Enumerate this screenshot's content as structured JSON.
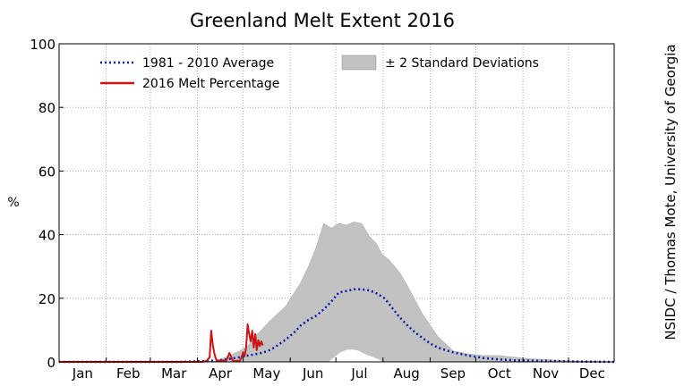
{
  "chart_data": {
    "type": "line",
    "title": "Greenland Melt Extent 2016",
    "ylabel": "%",
    "xlabel": "",
    "credit": "NSIDC / Thomas Mote, University of Georgia",
    "months": [
      "Jan",
      "Feb",
      "Mar",
      "Apr",
      "May",
      "Jun",
      "Jul",
      "Aug",
      "Sep",
      "Oct",
      "Nov",
      "Dec"
    ],
    "ylim": [
      0,
      100
    ],
    "yticks": [
      0,
      20,
      40,
      60,
      80,
      100
    ],
    "xlim_day": [
      1,
      366
    ],
    "grid": true,
    "legend": {
      "placement": "top",
      "average_label": "1981 - 2010 Average",
      "melt_label": "2016 Melt Percentage",
      "band_label": "± 2 Standard Deviations"
    },
    "colors": {
      "average": "#0b1fa8",
      "melt": "#cc1414",
      "band": "#c2c2c2",
      "grid": "#999999"
    },
    "series": [
      {
        "name": "1981 - 2010 Average",
        "style": "dotted",
        "x": [
          1,
          60,
          80,
          100,
          110,
          120,
          125,
          130,
          135,
          140,
          145,
          150,
          155,
          160,
          165,
          170,
          175,
          180,
          185,
          190,
          195,
          200,
          205,
          210,
          215,
          220,
          225,
          230,
          235,
          240,
          245,
          250,
          260,
          270,
          280,
          290,
          300,
          320,
          340,
          366
        ],
        "y": [
          0,
          0,
          0,
          0.3,
          0.7,
          1.5,
          2,
          2.4,
          2.9,
          3.8,
          5.3,
          7,
          9,
          11.5,
          13.2,
          14.5,
          16.5,
          19,
          21.8,
          22.3,
          22.8,
          22.8,
          22.5,
          21.5,
          20,
          17,
          14,
          11.5,
          9.3,
          7.5,
          5.8,
          4.5,
          3,
          2,
          1.2,
          0.8,
          0.5,
          0.3,
          0.1,
          0
        ]
      },
      {
        "name": "2016 Melt Percentage",
        "style": "solid",
        "x": [
          1,
          30,
          60,
          95,
          98,
          100,
          101,
          102,
          103,
          104,
          105,
          106,
          107,
          108,
          109,
          110,
          111,
          112,
          113,
          114,
          115,
          116,
          117,
          118,
          119,
          120,
          121,
          122,
          123,
          124,
          125,
          126,
          127,
          128,
          129,
          130,
          131,
          132,
          133,
          134,
          135
        ],
        "y": [
          0,
          0,
          0,
          0,
          0.3,
          1.5,
          9.8,
          5.5,
          2.8,
          1,
          0.3,
          0.5,
          0.2,
          0.3,
          0.5,
          0.2,
          0.5,
          1.5,
          2.8,
          1.8,
          0.6,
          0.3,
          0.2,
          0.4,
          0.2,
          0.5,
          1.5,
          3,
          1.8,
          4.5,
          11.8,
          8.8,
          6.5,
          9.8,
          4.5,
          8.8,
          3.7,
          6.8,
          5,
          6.4,
          5.2
        ]
      }
    ],
    "band": {
      "name": "± 2 Standard Deviations",
      "x": [
        1,
        90,
        105,
        120,
        125,
        130,
        140,
        150,
        160,
        165,
        170,
        175,
        180,
        185,
        190,
        195,
        200,
        205,
        210,
        213,
        218,
        225,
        230,
        240,
        250,
        260,
        270,
        280,
        290,
        300,
        310,
        320,
        330,
        340,
        366
      ],
      "upper": [
        0,
        0,
        0.3,
        3.5,
        5,
        8,
        13,
        17.5,
        25,
        30,
        36,
        43.5,
        42,
        43.5,
        43,
        44,
        43.5,
        39.5,
        37,
        34,
        32,
        28,
        24,
        15,
        8,
        3.5,
        2.5,
        2,
        2,
        1.5,
        1,
        0.8,
        0.5,
        0.3,
        0
      ],
      "lower": [
        0,
        0,
        0,
        0,
        0,
        0,
        0,
        0,
        0,
        0,
        0,
        0,
        0,
        0,
        0,
        0,
        0,
        0,
        0,
        0,
        0,
        0,
        0,
        0,
        0,
        0,
        0,
        0,
        0,
        0,
        0,
        0,
        0,
        0,
        0
      ],
      "inner_hole": {
        "x": [
          178,
          182,
          186,
          190,
          194,
          198,
          202,
          206,
          210,
          214
        ],
        "upper": [
          0,
          1.5,
          3,
          3.8,
          3.9,
          3.5,
          2.5,
          1.8,
          1,
          0
        ],
        "lower": [
          0,
          0,
          0,
          0,
          0,
          0,
          0,
          0,
          0,
          0
        ]
      }
    }
  }
}
